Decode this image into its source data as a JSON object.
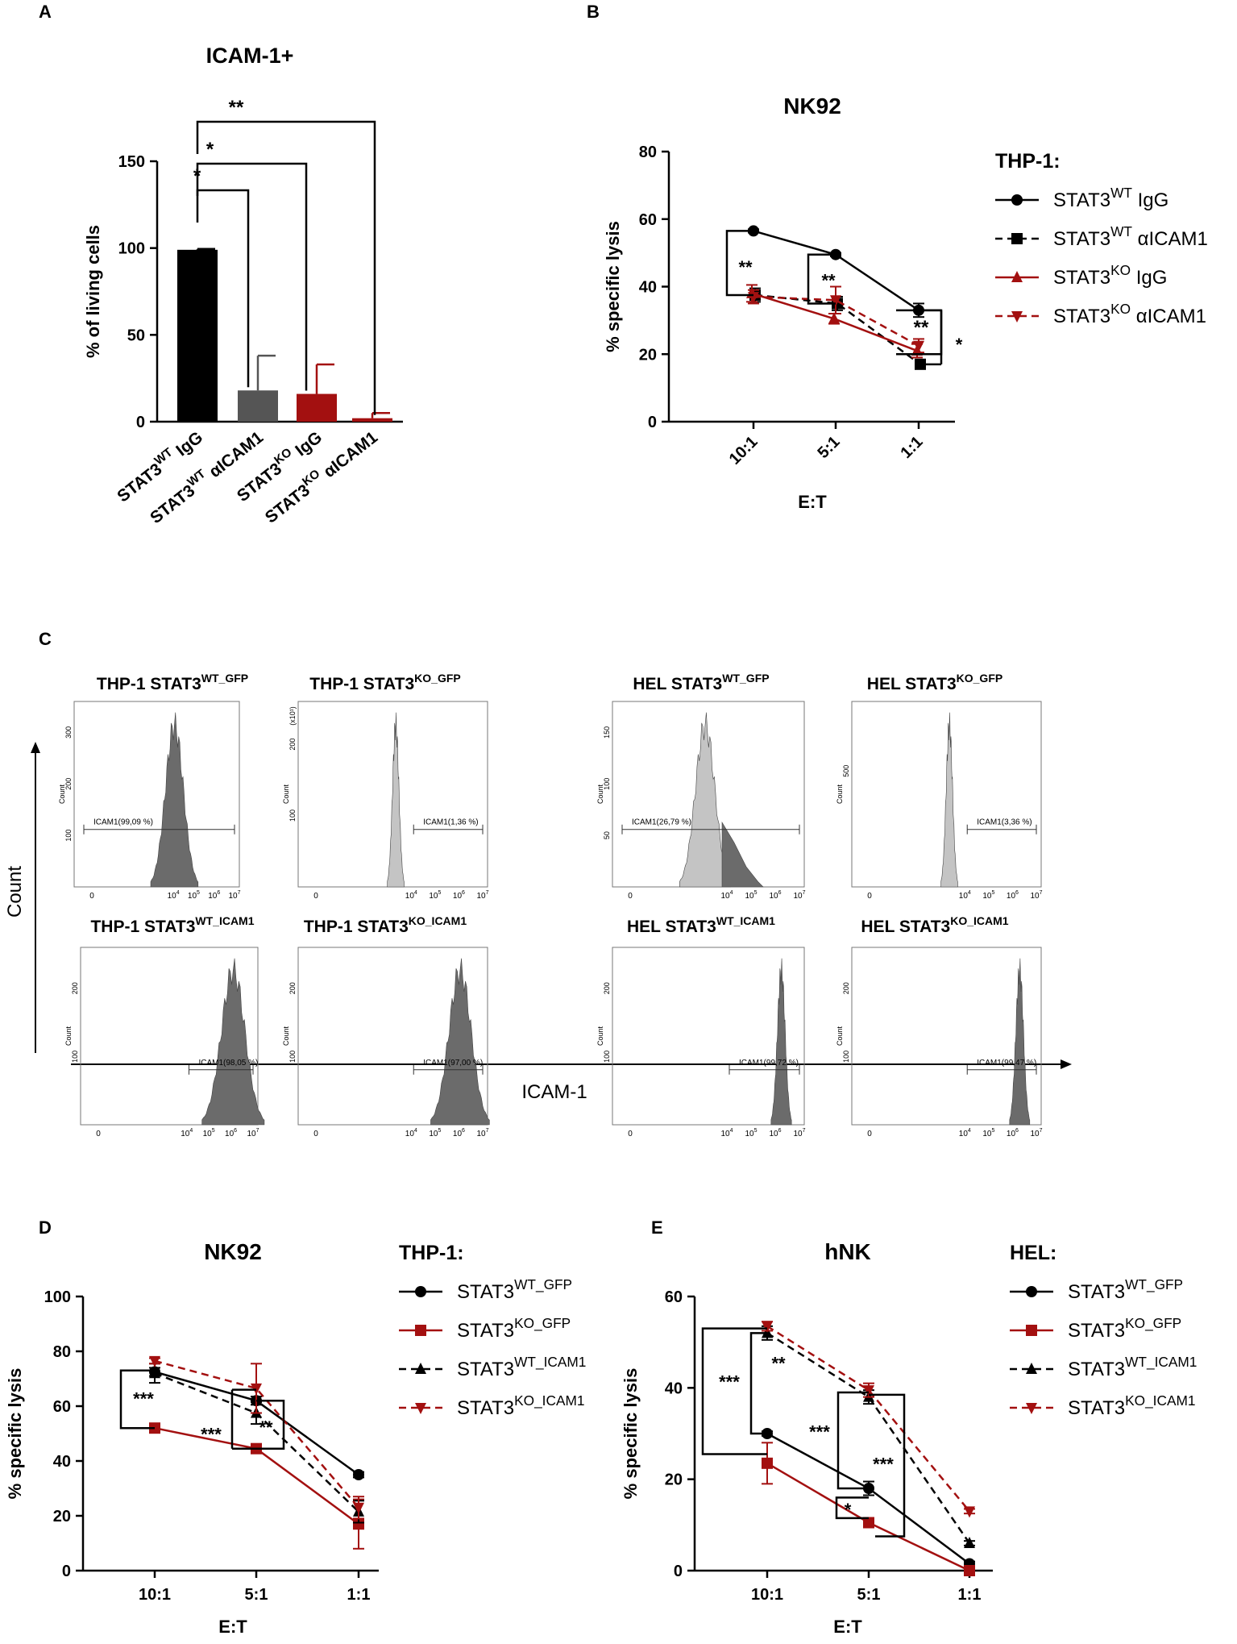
{
  "panels": {
    "a": "A",
    "b": "B",
    "c": "C",
    "d": "D",
    "e": "E"
  },
  "colors": {
    "black": "#000000",
    "grey": "#555555",
    "red": "#a31010",
    "hist_dark": "#6b6b6b",
    "hist_light": "#c4c4c4"
  },
  "chart_data": [
    {
      "id": "A",
      "type": "bar",
      "title": "ICAM-1+",
      "ylabel": "% of living cells",
      "xlabel": "",
      "ylim": [
        0,
        150
      ],
      "yticks": [
        0,
        50,
        100,
        150
      ],
      "categories": [
        {
          "main": "STAT3",
          "sup": "WT",
          "tail": " IgG"
        },
        {
          "main": "STAT3",
          "sup": "WT",
          "tail": " αICAM1"
        },
        {
          "main": "STAT3",
          "sup": "KO",
          "tail": " IgG"
        },
        {
          "main": "STAT3",
          "sup": "KO",
          "tail": " αICAM1"
        }
      ],
      "values": [
        99,
        18,
        16,
        2
      ],
      "errors": [
        0.5,
        20,
        17,
        3
      ],
      "bar_colors": [
        "#000000",
        "#555555",
        "#a31010",
        "#a31010"
      ],
      "significance": [
        "*",
        "*",
        "**"
      ]
    },
    {
      "id": "B",
      "type": "line",
      "title": "NK92",
      "ylabel": "% specific lysis",
      "xlabel": "E:T",
      "ylim": [
        0,
        80
      ],
      "yticks": [
        0,
        20,
        40,
        60,
        80
      ],
      "categories": [
        "10:1",
        "5:1",
        "1:1"
      ],
      "legend_title": "THP-1:",
      "series": [
        {
          "main": "STAT3",
          "sup": "WT",
          "tail": " IgG",
          "color": "#000000",
          "dash": false,
          "marker": "circle",
          "values": [
            56.5,
            49.5,
            33
          ],
          "errors": [
            0.5,
            0.5,
            2
          ]
        },
        {
          "main": "STAT3",
          "sup": "WT",
          "tail": " αICAM1",
          "color": "#000000",
          "dash": true,
          "marker": "square",
          "values": [
            37.5,
            35,
            17
          ],
          "errors": [
            2,
            2,
            1
          ]
        },
        {
          "main": "STAT3",
          "sup": "KO",
          "tail": " IgG",
          "color": "#a31010",
          "dash": false,
          "marker": "triangle",
          "values": [
            38,
            30.5,
            21
          ],
          "errors": [
            2.5,
            1.5,
            2
          ]
        },
        {
          "main": "STAT3",
          "sup": "KO",
          "tail": " αICAM1",
          "color": "#a31010",
          "dash": true,
          "marker": "down",
          "values": [
            37,
            36,
            22.5
          ],
          "errors": [
            2,
            4,
            2
          ]
        }
      ],
      "annotations": [
        "**",
        "**",
        "**",
        "*"
      ]
    },
    {
      "id": "D",
      "type": "line",
      "title": "NK92",
      "ylabel": "% specific lysis",
      "xlabel": "E:T",
      "ylim": [
        0,
        100
      ],
      "yticks": [
        0,
        20,
        40,
        60,
        80,
        100
      ],
      "categories": [
        "10:1",
        "5:1",
        "1:1"
      ],
      "legend_title": "THP-1:",
      "series": [
        {
          "main": "STAT3",
          "sup": "WT_GFP",
          "tail": "",
          "color": "#000000",
          "dash": false,
          "marker": "circle",
          "values": [
            72.5,
            62,
            35
          ],
          "errors": [
            1.5,
            1.5,
            1
          ]
        },
        {
          "main": "STAT3",
          "sup": "KO_GFP",
          "tail": "",
          "color": "#a31010",
          "dash": false,
          "marker": "square",
          "values": [
            52,
            44.5,
            17
          ],
          "errors": [
            1,
            1,
            9
          ]
        },
        {
          "main": "STAT3",
          "sup": "WT_ICAM1",
          "tail": "",
          "color": "#000000",
          "dash": true,
          "marker": "triangle",
          "values": [
            72,
            57.5,
            21.5
          ],
          "errors": [
            3.5,
            4,
            4
          ]
        },
        {
          "main": "STAT3",
          "sup": "KO_ICAM1",
          "tail": "",
          "color": "#a31010",
          "dash": true,
          "marker": "down",
          "values": [
            76.5,
            66.5,
            23
          ],
          "errors": [
            1,
            9,
            4
          ]
        }
      ],
      "annotations": [
        "***",
        "***",
        "**"
      ]
    },
    {
      "id": "E",
      "type": "line",
      "title": "hNK",
      "ylabel": "% specific lysis",
      "xlabel": "E:T",
      "ylim": [
        0,
        60
      ],
      "yticks": [
        0,
        20,
        40,
        60
      ],
      "categories": [
        "10:1",
        "5:1",
        "1:1"
      ],
      "legend_title": "HEL:",
      "series": [
        {
          "main": "STAT3",
          "sup": "WT_GFP",
          "tail": "",
          "color": "#000000",
          "dash": false,
          "marker": "circle",
          "values": [
            30,
            18,
            1.5
          ],
          "errors": [
            0.5,
            1.5,
            0.5
          ]
        },
        {
          "main": "STAT3",
          "sup": "KO_GFP",
          "tail": "",
          "color": "#a31010",
          "dash": false,
          "marker": "square",
          "values": [
            23.5,
            10.5,
            0
          ],
          "errors": [
            4.5,
            0.5,
            0.5
          ]
        },
        {
          "main": "STAT3",
          "sup": "WT_ICAM1",
          "tail": "",
          "color": "#000000",
          "dash": true,
          "marker": "triangle",
          "values": [
            52,
            38,
            6
          ],
          "errors": [
            1.5,
            1.5,
            0.5
          ]
        },
        {
          "main": "STAT3",
          "sup": "KO_ICAM1",
          "tail": "",
          "color": "#a31010",
          "dash": true,
          "marker": "down",
          "values": [
            53.5,
            39.5,
            13
          ],
          "errors": [
            1,
            1.5,
            0.5
          ]
        }
      ],
      "annotations": [
        "***",
        "**",
        "***",
        "***",
        "*"
      ]
    }
  ],
  "flow": {
    "y_axis_label": "Count",
    "x_axis_label": "ICAM-1",
    "y_tick_label": "Count",
    "x_tick_labels": [
      {
        "base": "0",
        "exp": ""
      },
      {
        "base": "10",
        "exp": "4"
      },
      {
        "base": "10",
        "exp": "5"
      },
      {
        "base": "10",
        "exp": "6"
      },
      {
        "base": "10",
        "exp": "7"
      }
    ],
    "plots": [
      {
        "prefix": "THP-1 STAT3",
        "sup": "WT_GFP",
        "gate": "ICAM1(99,09 %)",
        "yticks": [
          "100",
          "200",
          "300"
        ],
        "multiplier": "",
        "peak_decade": 4.05,
        "width": 0.33,
        "percent_positive": 99.09
      },
      {
        "prefix": "THP-1 STAT3",
        "sup": "KO_GFP",
        "gate": "ICAM1(1,36 %)",
        "yticks": [
          "100",
          "200"
        ],
        "multiplier": "(x10¹)",
        "peak_decade": 3.35,
        "width": 0.1,
        "percent_positive": 1.36
      },
      {
        "prefix": "HEL STAT3",
        "sup": "WT_GFP",
        "gate": "ICAM1(26,79 %)",
        "yticks": [
          "50",
          "100",
          "150"
        ],
        "multiplier": "",
        "peak_decade": 3.1,
        "width": 0.3,
        "percent_positive": 26.79
      },
      {
        "prefix": "HEL STAT3",
        "sup": "KO_GFP",
        "gate": "ICAM1(3,36 %)",
        "yticks": [
          "500"
        ],
        "multiplier": "",
        "peak_decade": 3.35,
        "width": 0.1,
        "percent_positive": 3.36
      },
      {
        "prefix": "THP-1 STAT3",
        "sup": "WT_ICAM1",
        "gate": "ICAM1(98,05 %)",
        "yticks": [
          "100",
          "200"
        ],
        "multiplier": "",
        "peak_decade": 6.1,
        "width": 0.4,
        "percent_positive": 98.05
      },
      {
        "prefix": "THP-1 STAT3",
        "sup": "KO_ICAM1",
        "gate": "ICAM1(97,00 %)",
        "yticks": [
          "100",
          "200"
        ],
        "multiplier": "",
        "peak_decade": 6.05,
        "width": 0.35,
        "percent_positive": 97.0
      },
      {
        "prefix": "HEL STAT3",
        "sup": "WT_ICAM1",
        "gate": "ICAM1(99,72 %)",
        "yticks": [
          "100",
          "200"
        ],
        "multiplier": "",
        "peak_decade": 6.25,
        "width": 0.12,
        "percent_positive": 99.72
      },
      {
        "prefix": "HEL STAT3",
        "sup": "KO_ICAM1",
        "gate": "ICAM1(99,47 %)",
        "yticks": [
          "100",
          "200"
        ],
        "multiplier": "",
        "peak_decade": 6.3,
        "width": 0.12,
        "percent_positive": 99.47
      }
    ]
  }
}
